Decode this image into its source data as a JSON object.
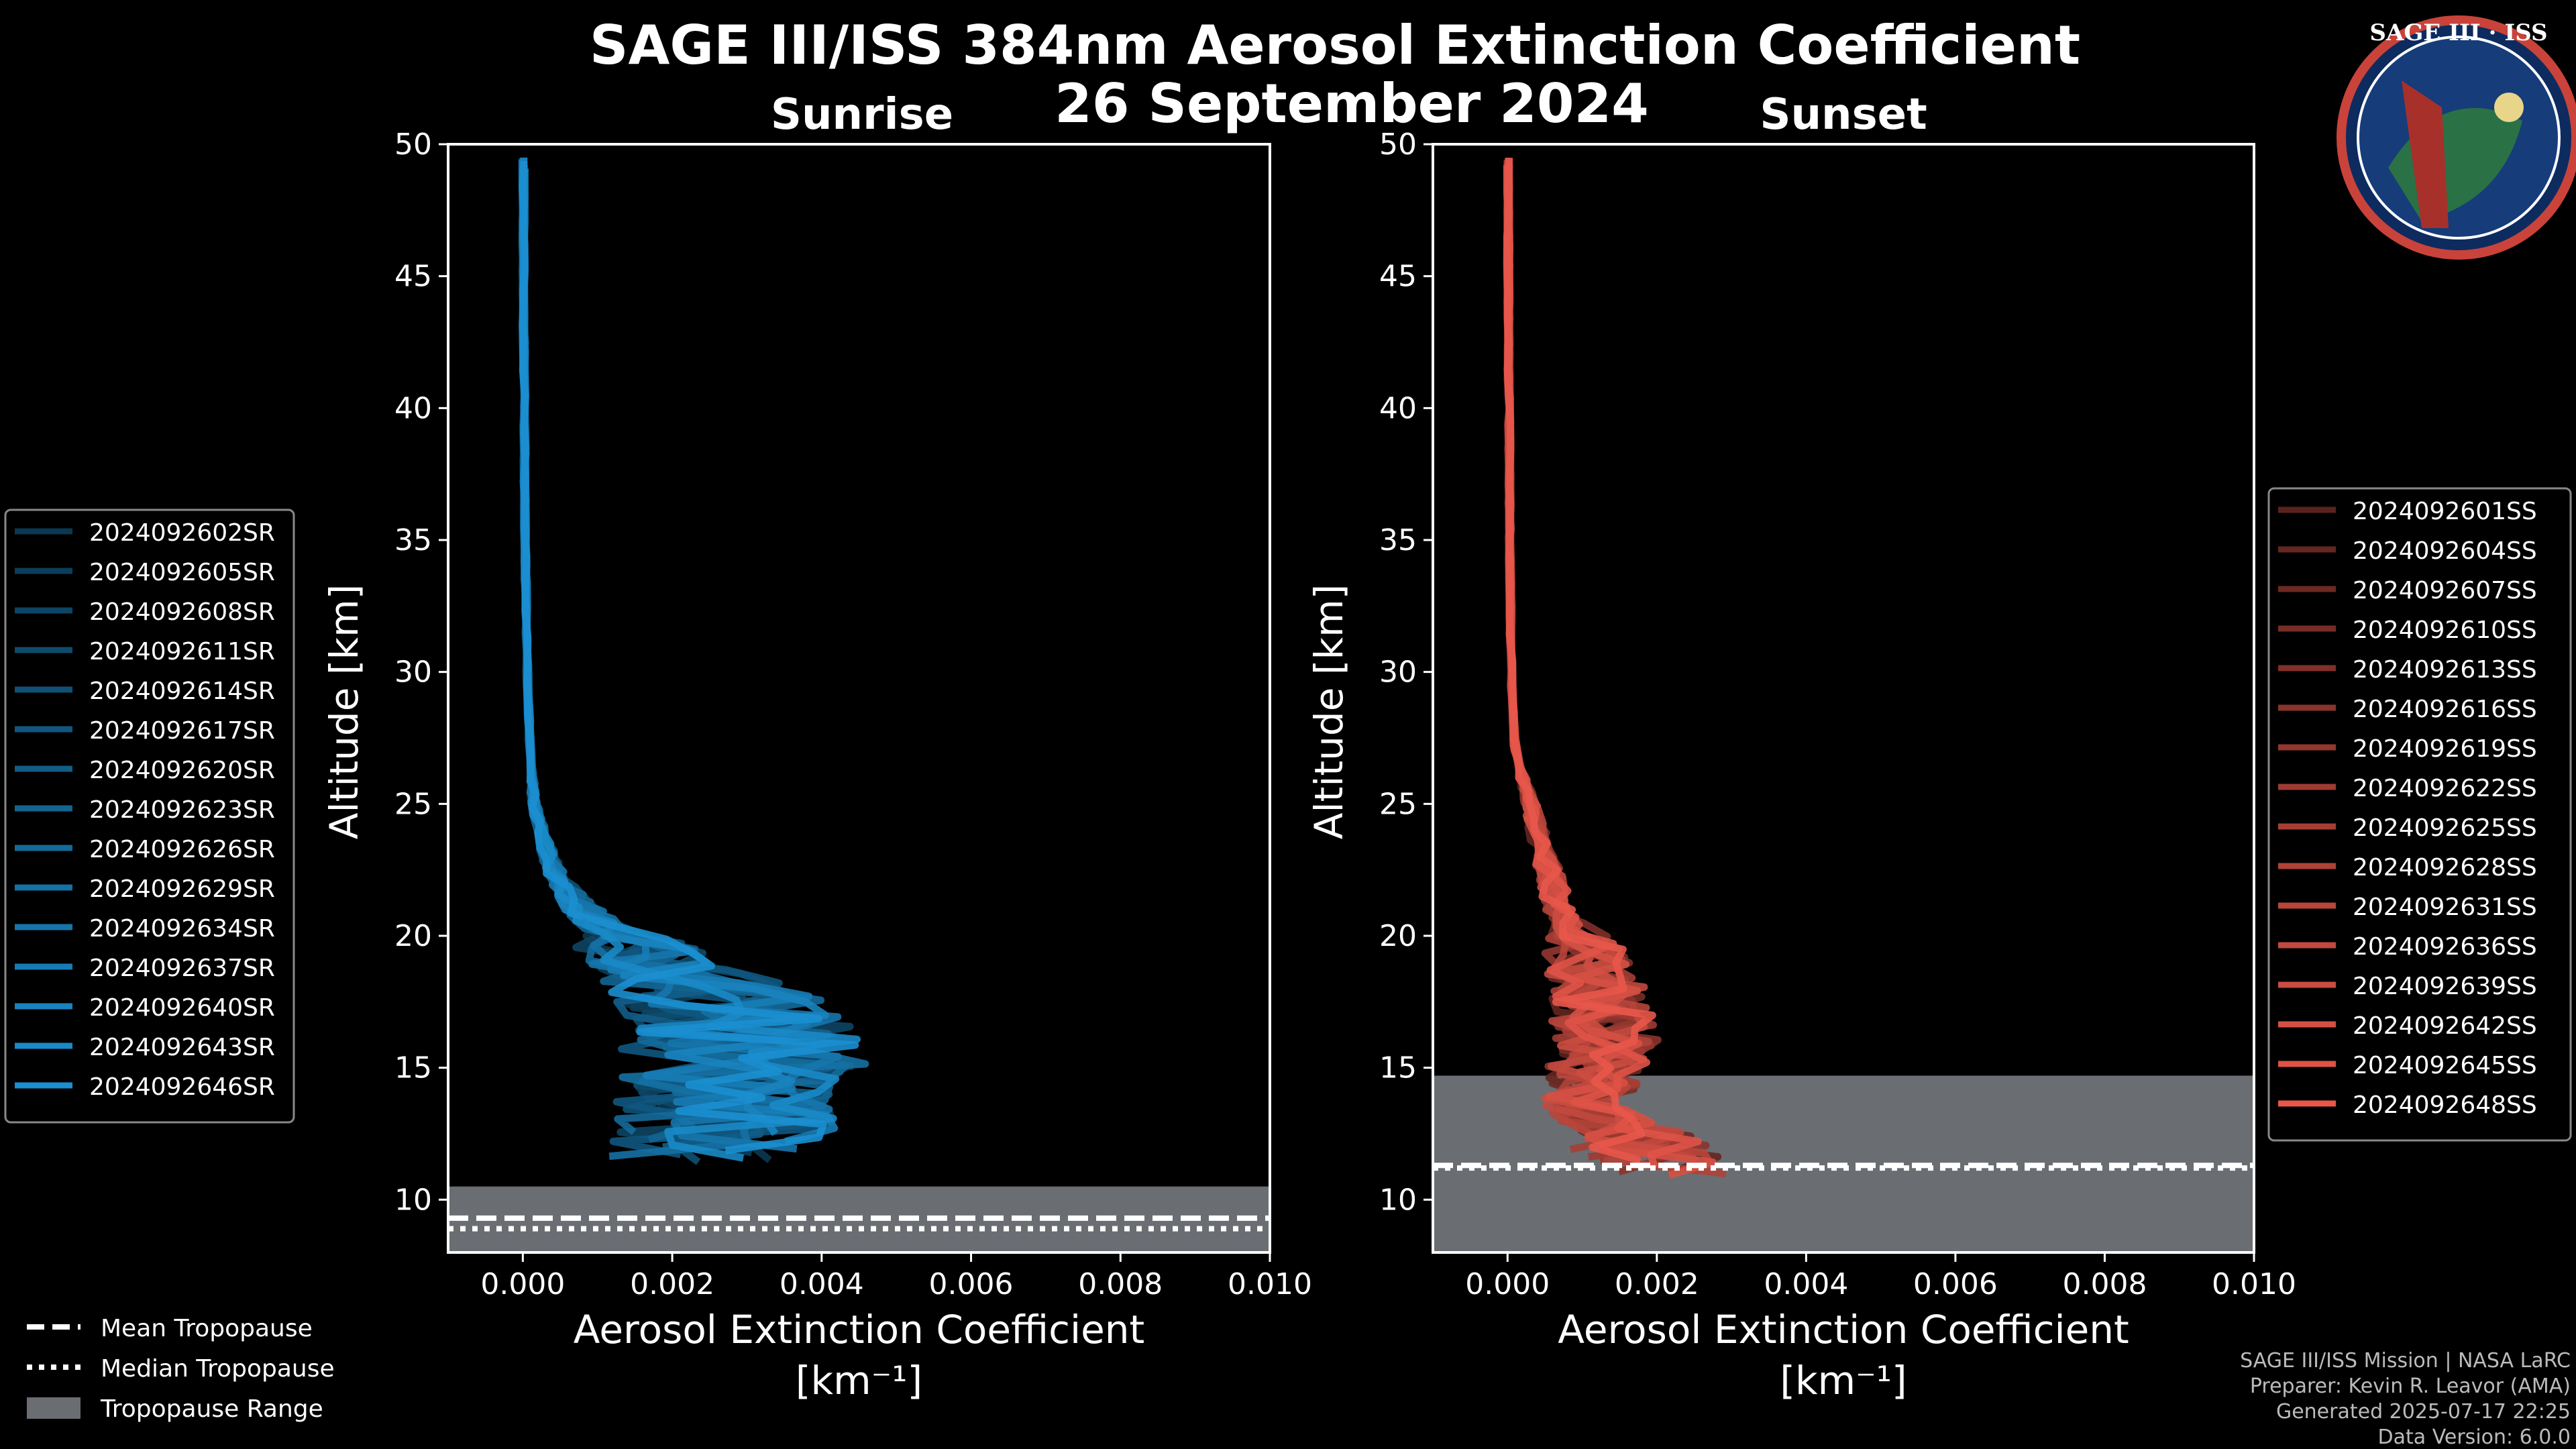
{
  "title": "SAGE III/ISS 384nm Aerosol Extinction Coefficient",
  "date": "26 September 2024",
  "colors": {
    "sunrise": "#1b8fd0",
    "sunset": "#e8574a",
    "tropo_range": "#6a6d72"
  },
  "logo": {
    "text": "SAGE III · ISS"
  },
  "footer": [
    "SAGE III/ISS Mission | NASA LaRC",
    "Preparer: Kevin R. Leavor (AMA)",
    "Generated 2025-07-17 22:25",
    "Data Version: 6.0.0"
  ],
  "tropo_legend": [
    "Mean Tropopause",
    "Median Tropopause",
    "Tropopause Range"
  ],
  "chart_data": [
    {
      "type": "line",
      "panel": "Sunrise",
      "xlabel": "Aerosol Extinction Coefficient",
      "xunit": "[km⁻¹]",
      "ylabel": "Altitude [km]",
      "xlim": [
        -0.001,
        0.01
      ],
      "ylim": [
        8,
        50
      ],
      "xticks": [
        "0.000",
        "0.002",
        "0.004",
        "0.006",
        "0.008",
        "0.010"
      ],
      "xtick_values": [
        0,
        0.002,
        0.004,
        0.006,
        0.008,
        0.01
      ],
      "yticks": [
        10,
        15,
        20,
        25,
        30,
        35,
        40,
        45,
        50
      ],
      "tropopause": {
        "mean": 9.3,
        "median": 8.9,
        "range": [
          8,
          10.5
        ]
      },
      "profile_shape": {
        "altitude": [
          12,
          13,
          14,
          15,
          16,
          17,
          18,
          19,
          20,
          21,
          22,
          23,
          24,
          25,
          27,
          30,
          35,
          40,
          45,
          50
        ],
        "extinction": [
          0.0025,
          0.0028,
          0.0027,
          0.003,
          0.0029,
          0.0028,
          0.0024,
          0.0018,
          0.0012,
          0.0008,
          0.0005,
          0.00035,
          0.00025,
          0.00015,
          0.0001,
          6e-05,
          3e-05,
          2e-05,
          1e-05,
          1e-05
        ]
      },
      "series": [
        {
          "name": "2024092602SR"
        },
        {
          "name": "2024092605SR"
        },
        {
          "name": "2024092608SR"
        },
        {
          "name": "2024092611SR"
        },
        {
          "name": "2024092614SR"
        },
        {
          "name": "2024092617SR"
        },
        {
          "name": "2024092620SR"
        },
        {
          "name": "2024092623SR"
        },
        {
          "name": "2024092626SR"
        },
        {
          "name": "2024092629SR"
        },
        {
          "name": "2024092634SR"
        },
        {
          "name": "2024092637SR"
        },
        {
          "name": "2024092640SR"
        },
        {
          "name": "2024092643SR"
        },
        {
          "name": "2024092646SR"
        }
      ]
    },
    {
      "type": "line",
      "panel": "Sunset",
      "xlabel": "Aerosol Extinction Coefficient",
      "xunit": "[km⁻¹]",
      "ylabel": "Altitude [km]",
      "xlim": [
        -0.001,
        0.01
      ],
      "ylim": [
        8,
        50
      ],
      "xticks": [
        "0.000",
        "0.002",
        "0.004",
        "0.006",
        "0.008",
        "0.010"
      ],
      "xtick_values": [
        0,
        0.002,
        0.004,
        0.006,
        0.008,
        0.01
      ],
      "yticks": [
        10,
        15,
        20,
        25,
        30,
        35,
        40,
        45,
        50
      ],
      "tropopause": {
        "mean": 11.3,
        "median": 11.2,
        "range": [
          8,
          14.7
        ]
      },
      "profile_shape": {
        "altitude": [
          11.5,
          12,
          12.5,
          13,
          13.5,
          14,
          15,
          16,
          17,
          18,
          19,
          20,
          21,
          22,
          23,
          24,
          25,
          27,
          30,
          35,
          40,
          45,
          50
        ],
        "extinction": [
          0.002,
          0.0018,
          0.0016,
          0.0012,
          0.001,
          0.0011,
          0.0012,
          0.0013,
          0.0013,
          0.0012,
          0.0011,
          0.0009,
          0.0007,
          0.0006,
          0.0005,
          0.0004,
          0.0003,
          0.0001,
          5e-05,
          3e-05,
          2e-05,
          1e-05,
          1e-05
        ]
      },
      "series": [
        {
          "name": "2024092601SS"
        },
        {
          "name": "2024092604SS"
        },
        {
          "name": "2024092607SS"
        },
        {
          "name": "2024092610SS"
        },
        {
          "name": "2024092613SS"
        },
        {
          "name": "2024092616SS"
        },
        {
          "name": "2024092619SS"
        },
        {
          "name": "2024092622SS"
        },
        {
          "name": "2024092625SS"
        },
        {
          "name": "2024092628SS"
        },
        {
          "name": "2024092631SS"
        },
        {
          "name": "2024092636SS"
        },
        {
          "name": "2024092639SS"
        },
        {
          "name": "2024092642SS"
        },
        {
          "name": "2024092645SS"
        },
        {
          "name": "2024092648SS"
        }
      ]
    }
  ]
}
